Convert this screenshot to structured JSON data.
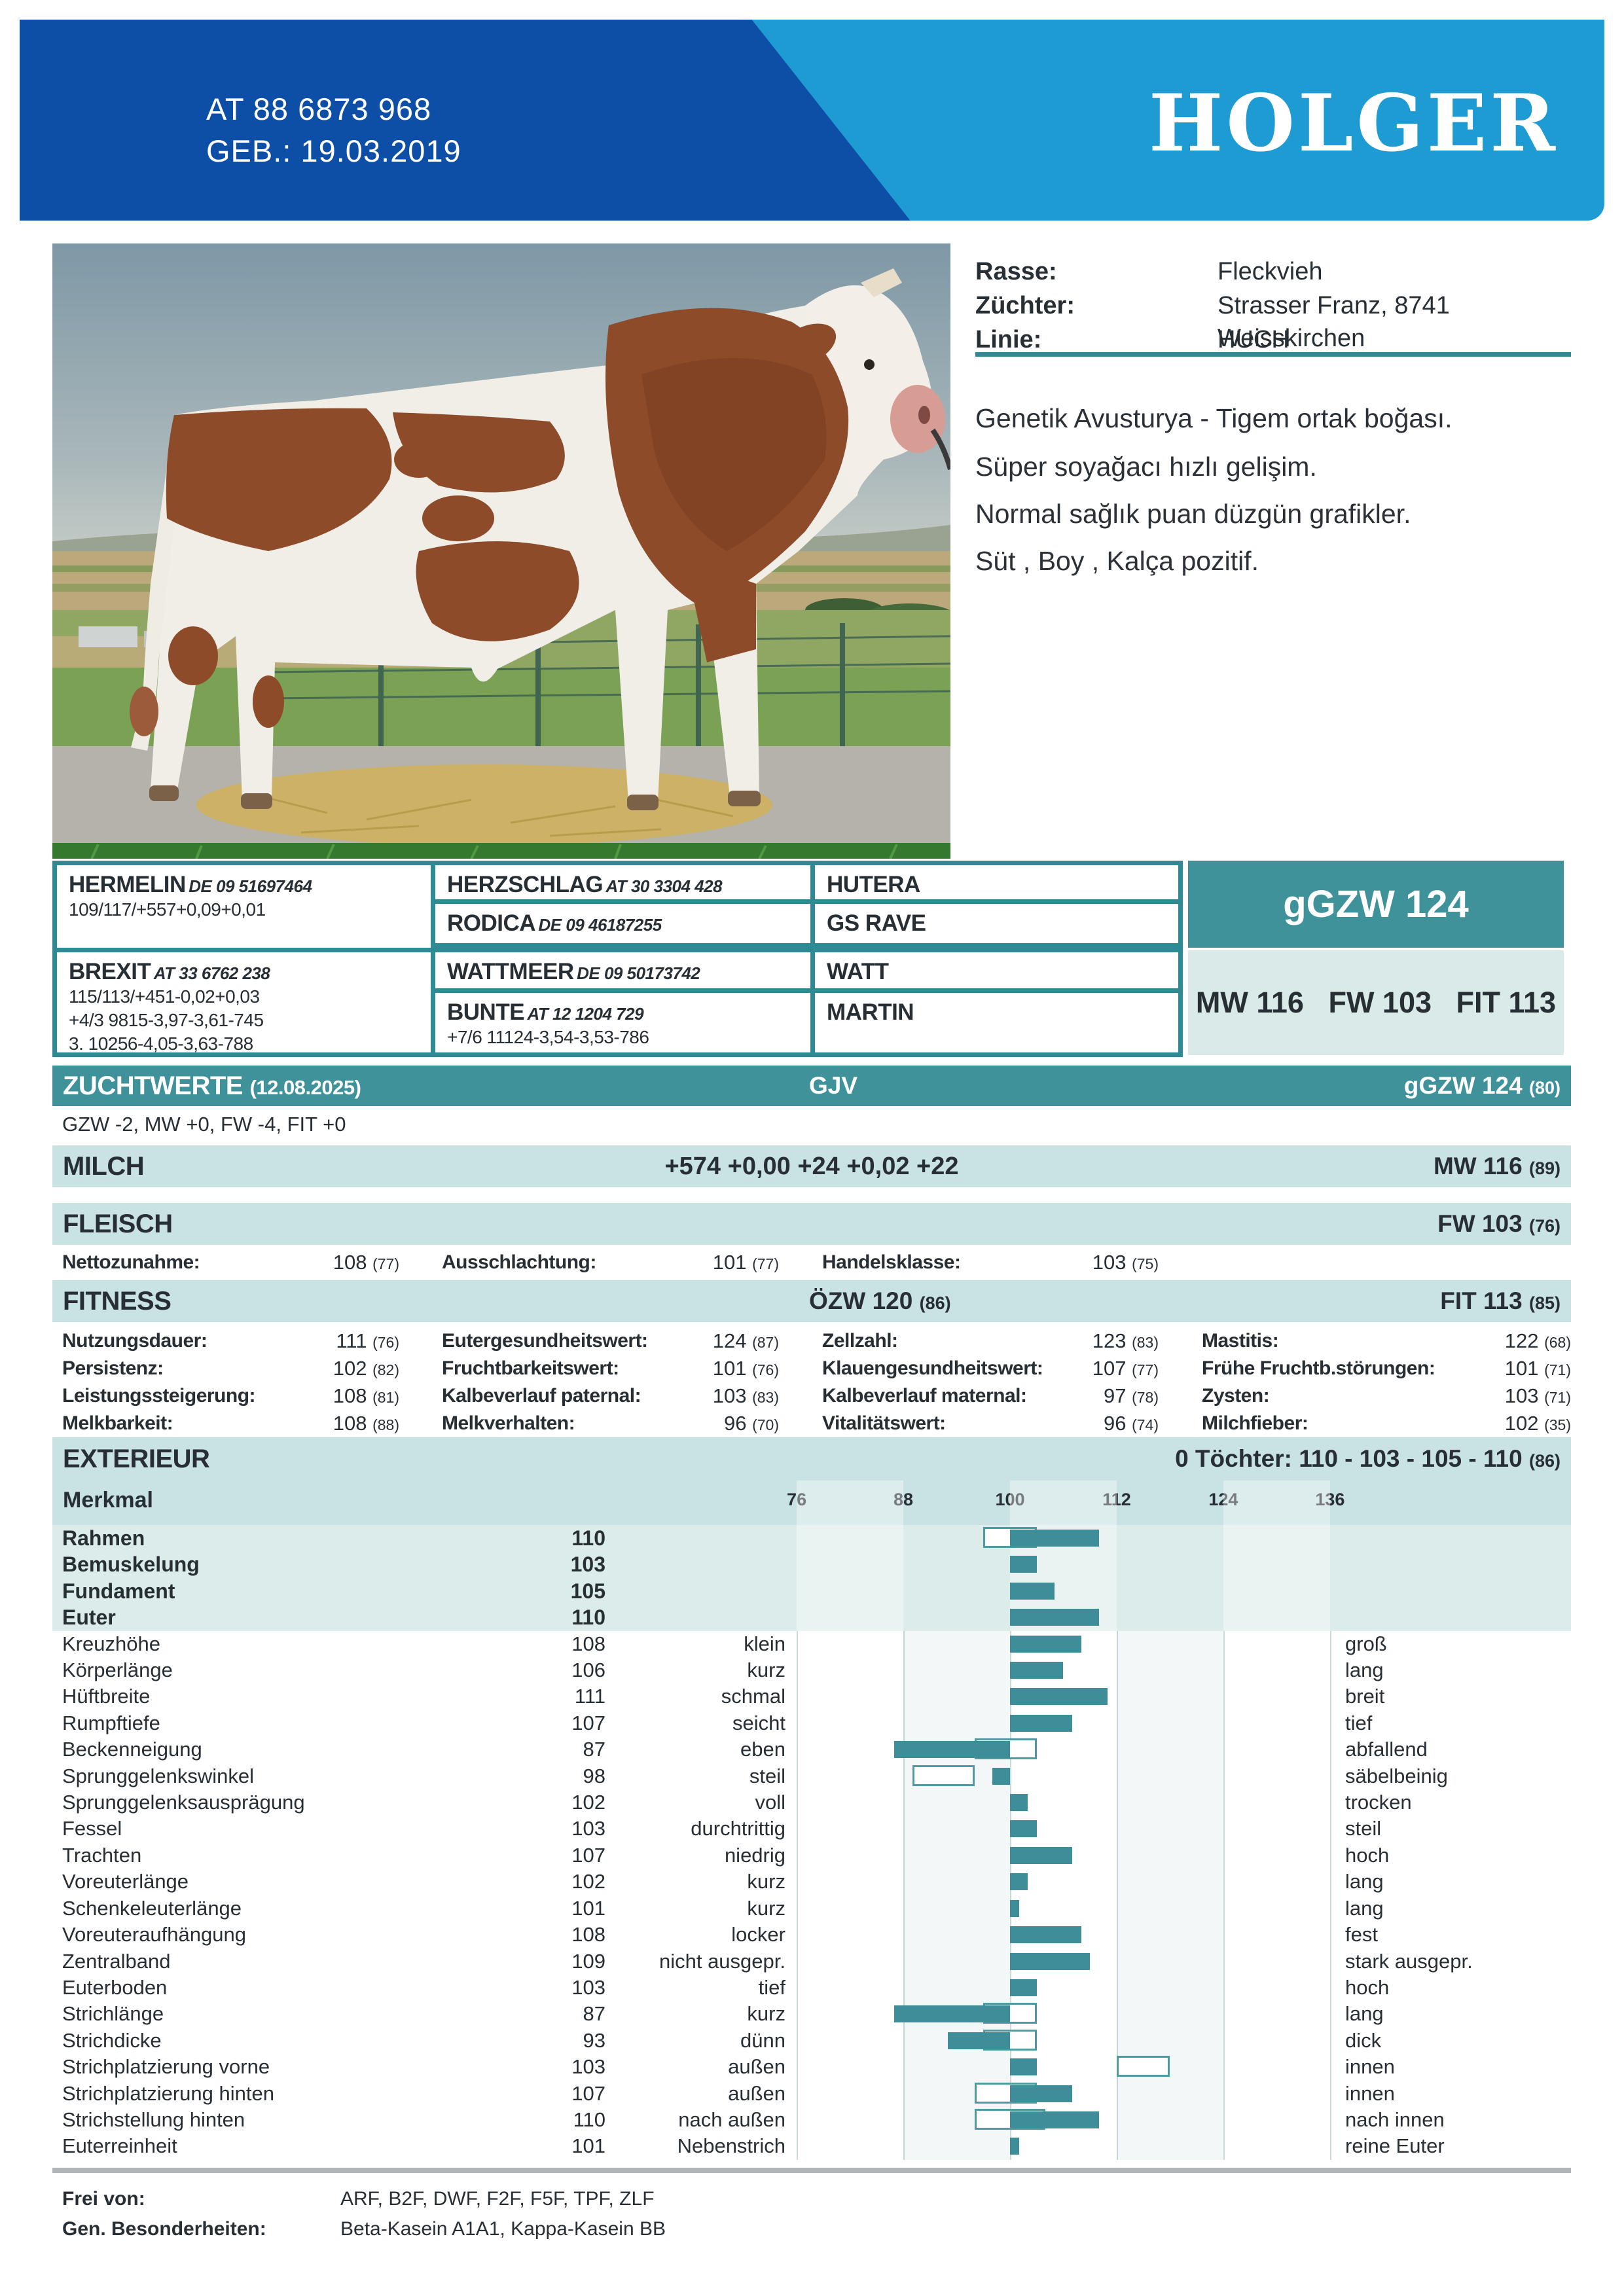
{
  "colors": {
    "dark_blue": "#0d4fa7",
    "light_blue": "#1e9bd2",
    "accent_teal": "#3f929a",
    "light_teal": "#c9e2e4",
    "bar_fill": "#3d8e98",
    "text_dark": "#272e34"
  },
  "header": {
    "id_line1": "AT 88 6873 968",
    "id_line2": "GEB.: 19.03.2019",
    "name": "HOLGER"
  },
  "info": {
    "rows": [
      {
        "label": "Rasse:",
        "value": "Fleckvieh"
      },
      {
        "label": "Züchter:",
        "value": "Strasser Franz, 8741 Weisskirchen"
      },
      {
        "label": "Linie:",
        "value": "HUCH"
      }
    ],
    "notes": [
      "Genetik Avusturya - Tigem ortak boğası.",
      "Süper soyağacı hızlı gelişim.",
      "Normal sağlık puan düzgün grafikler.",
      "Süt , Boy , Kalça pozitif."
    ]
  },
  "pedigree": {
    "sire": {
      "name": "HERMELIN",
      "id": "DE 09 51697464",
      "line1": "109/117/+557+0,09+0,01"
    },
    "dam": {
      "name": "BREXIT",
      "id": "AT 33 6762 238",
      "lines": [
        "115/113/+451-0,02+0,03",
        "+4/3 9815-3,97-3,61-745",
        "3. 10256-4,05-3,63-788"
      ]
    },
    "gen2": [
      {
        "name": "HERZSCHLAG",
        "id": "AT 30 3304 428",
        "line": ""
      },
      {
        "name": "RODICA",
        "id": "DE 09 46187255",
        "line": ""
      },
      {
        "name": "WATTMEER",
        "id": "DE 09 50173742",
        "line": ""
      },
      {
        "name": "BUNTE",
        "id": "AT 12 1204 729",
        "line": "+7/6 11124-3,54-3,53-786"
      }
    ],
    "gen3": [
      "HUTERA",
      "GS RAVE",
      "WATT",
      "MARTIN"
    ],
    "ggzw": "gGZW 124",
    "subindexes": "MW 116   FW 103   FIT 113"
  },
  "zuchtwerte": {
    "title": "ZUCHTWERTE",
    "date": "(12.08.2025)",
    "center": "GJV",
    "right": "gGZW 124",
    "conf": "(80)"
  },
  "interim": "GZW -2, MW +0, FW -4, FIT +0",
  "milch": {
    "title": "MILCH",
    "center": "+574 +0,00 +24 +0,02 +22",
    "right": "MW 116",
    "conf": "(89)"
  },
  "fleisch": {
    "title": "FLEISCH",
    "right": "FW 103",
    "conf": "(76)",
    "cells": [
      {
        "label": "Nettozunahme:",
        "value": "108",
        "conf": "(77)"
      },
      {
        "label": "Ausschlachtung:",
        "value": "101",
        "conf": "(77)"
      },
      {
        "label": "Handelsklasse:",
        "value": "103",
        "conf": "(75)"
      }
    ]
  },
  "fitness": {
    "title": "FITNESS",
    "center": "ÖZW 120",
    "center_conf": "(86)",
    "right": "FIT 113",
    "conf": "(85)",
    "rows": [
      [
        {
          "label": "Nutzungsdauer:",
          "value": "111",
          "conf": "(76)"
        },
        {
          "label": "Eutergesundheitswert:",
          "value": "124",
          "conf": "(87)"
        },
        {
          "label": "Zellzahl:",
          "value": "123",
          "conf": "(83)"
        },
        {
          "label": "Mastitis:",
          "value": "122",
          "conf": "(68)"
        }
      ],
      [
        {
          "label": "Persistenz:",
          "value": "102",
          "conf": "(82)"
        },
        {
          "label": "Fruchtbarkeitswert:",
          "value": "101",
          "conf": "(76)"
        },
        {
          "label": "Klauengesundheitswert:",
          "value": "107",
          "conf": "(77)"
        },
        {
          "label": "Frühe Fruchtb.störungen:",
          "value": "101",
          "conf": "(71)"
        }
      ],
      [
        {
          "label": "Leistungssteigerung:",
          "value": "108",
          "conf": "(81)"
        },
        {
          "label": "Kalbeverlauf paternal:",
          "value": "103",
          "conf": "(83)"
        },
        {
          "label": "Kalbeverlauf maternal:",
          "value": "97",
          "conf": "(78)"
        },
        {
          "label": "Zysten:",
          "value": "103",
          "conf": "(71)"
        }
      ],
      [
        {
          "label": "Melkbarkeit:",
          "value": "108",
          "conf": "(88)"
        },
        {
          "label": "Melkverhalten:",
          "value": "96",
          "conf": "(70)"
        },
        {
          "label": "Vitalitätswert:",
          "value": "96",
          "conf": "(74)"
        },
        {
          "label": "Milchfieber:",
          "value": "102",
          "conf": "(35)"
        }
      ]
    ]
  },
  "exterieur": {
    "title": "EXTERIEUR",
    "right": "0 Töchter: 110 - 103 - 105 - 110",
    "conf": "(86)",
    "merkmal": "Merkmal",
    "scale": [
      76,
      88,
      100,
      112,
      124,
      136
    ],
    "rows": [
      {
        "label": "Rahmen",
        "value": 110,
        "bold": true,
        "box": [
          97,
          103
        ],
        "left": "",
        "right": ""
      },
      {
        "label": "Bemuskelung",
        "value": 103,
        "bold": true,
        "left": "",
        "right": ""
      },
      {
        "label": "Fundament",
        "value": 105,
        "bold": true,
        "left": "",
        "right": ""
      },
      {
        "label": "Euter",
        "value": 110,
        "bold": true,
        "left": "",
        "right": ""
      },
      {
        "label": "Kreuzhöhe",
        "value": 108,
        "left": "klein",
        "right": "groß"
      },
      {
        "label": "Körperlänge",
        "value": 106,
        "left": "kurz",
        "right": "lang"
      },
      {
        "label": "Hüftbreite",
        "value": 111,
        "left": "schmal",
        "right": "breit"
      },
      {
        "label": "Rumpftiefe",
        "value": 107,
        "left": "seicht",
        "right": "tief"
      },
      {
        "label": "Beckenneigung",
        "value": 87,
        "box": [
          96,
          103
        ],
        "left": "eben",
        "right": "abfallend"
      },
      {
        "label": "Sprunggelenkswinkel",
        "value": 98,
        "box": [
          89,
          96
        ],
        "left": "steil",
        "right": "säbelbeinig"
      },
      {
        "label": "Sprunggelenksausprägung",
        "value": 102,
        "left": "voll",
        "right": "trocken"
      },
      {
        "label": "Fessel",
        "value": 103,
        "left": "durchtrittig",
        "right": "steil"
      },
      {
        "label": "Trachten",
        "value": 107,
        "left": "niedrig",
        "right": "hoch"
      },
      {
        "label": "Voreuterlänge",
        "value": 102,
        "left": "kurz",
        "right": "lang"
      },
      {
        "label": "Schenkeleuterlänge",
        "value": 101,
        "left": "kurz",
        "right": "lang"
      },
      {
        "label": "Voreuteraufhängung",
        "value": 108,
        "left": "locker",
        "right": "fest"
      },
      {
        "label": "Zentralband",
        "value": 109,
        "left": "nicht ausgepr.",
        "right": "stark ausgepr."
      },
      {
        "label": "Euterboden",
        "value": 103,
        "left": "tief",
        "right": "hoch"
      },
      {
        "label": "Strichlänge",
        "value": 87,
        "box": [
          97,
          103
        ],
        "left": "kurz",
        "right": "lang"
      },
      {
        "label": "Strichdicke",
        "value": 93,
        "box": [
          97,
          103
        ],
        "left": "dünn",
        "right": "dick"
      },
      {
        "label": "Strichplatzierung vorne",
        "value": 103,
        "box": [
          112,
          118
        ],
        "left": "außen",
        "right": "innen"
      },
      {
        "label": "Strichplatzierung hinten",
        "value": 107,
        "box": [
          96,
          103
        ],
        "left": "außen",
        "right": "innen"
      },
      {
        "label": "Strichstellung hinten",
        "value": 110,
        "box": [
          96,
          104
        ],
        "left": "nach außen",
        "right": "nach innen"
      },
      {
        "label": "Euterreinheit",
        "value": 101,
        "left": "Nebenstrich",
        "right": "reine Euter"
      }
    ]
  },
  "footer": {
    "frei_label": "Frei von:",
    "frei_value": "ARF, B2F, DWF, F2F, F5F, TPF, ZLF",
    "gen_label": "Gen. Besonderheiten:",
    "gen_value": "Beta-Kasein A1A1, Kappa-Kasein BB"
  }
}
